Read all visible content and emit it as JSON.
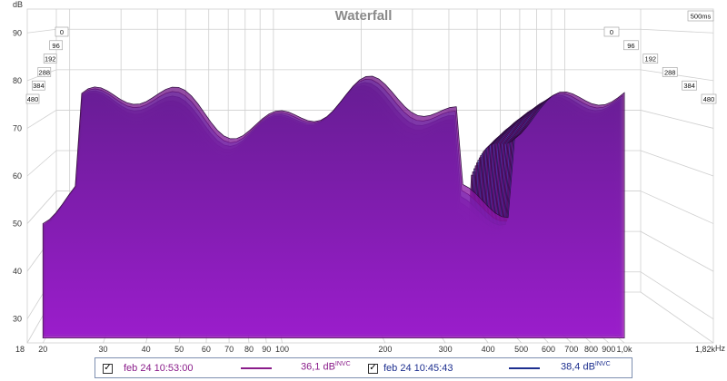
{
  "chart_data": {
    "type": "waterfall",
    "title": "Waterfall",
    "ylabel": "dB",
    "xunit": "Hz",
    "ylim": [
      25,
      95
    ],
    "xlim": [
      18,
      1820
    ],
    "x_log": true,
    "y_ticks": [
      "90",
      "80",
      "70",
      "60",
      "50",
      "40",
      "30"
    ],
    "x_ticks": [
      "18",
      "20",
      "30",
      "40",
      "50",
      "60",
      "70",
      "80",
      "90",
      "100",
      "200",
      "300",
      "400",
      "500",
      "600",
      "700",
      "800",
      "900",
      "1,0k",
      "1,82k"
    ],
    "time_ticks": [
      "0",
      "96",
      "192",
      "288",
      "384",
      "480"
    ],
    "time_span": "500ms",
    "grid": true
  },
  "legend": {
    "series": [
      {
        "label": "feb 24 10:53:00",
        "value": "36,1 dB",
        "suffix": "INVC",
        "checked": true,
        "color": "#8a1c8a",
        "check_glyph": "✓"
      },
      {
        "label": "feb 24 10:45:43",
        "value": "38,4 dB",
        "suffix": "INVC",
        "checked": true,
        "color": "#1d2f8f",
        "check_glyph": "✓"
      }
    ]
  },
  "colors": {
    "magenta": "#a020c0",
    "blue": "#2a4ef0",
    "dark": "#2b0b3a"
  }
}
